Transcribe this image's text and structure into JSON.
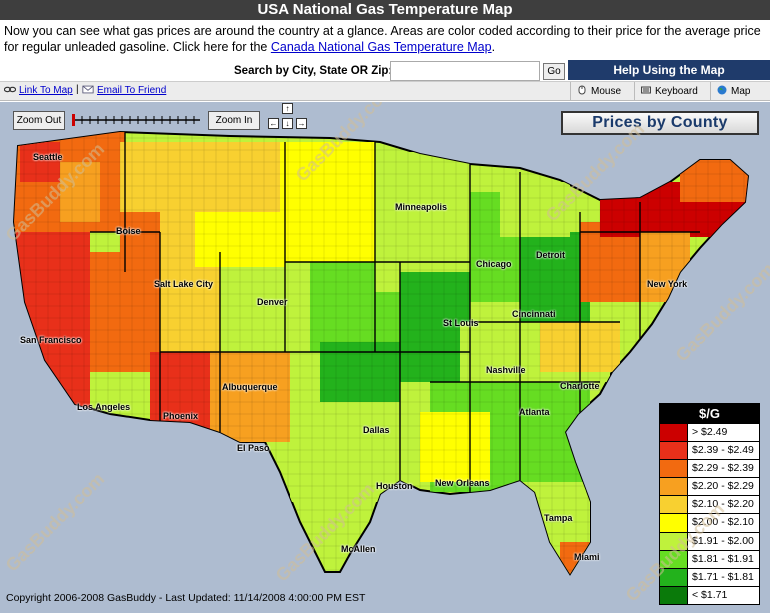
{
  "header": {
    "title": "USA National Gas Temperature Map"
  },
  "intro": {
    "text": "Now you can see what gas prices are around the country at a glance. Areas are color coded according to their price for the average price for regular unleaded gasoline. Click here for the",
    "link": "Canada National Gas Temperature Map",
    "suffix": "."
  },
  "search": {
    "label": "Search by City, State OR Zip:",
    "value": "",
    "go_label": "Go"
  },
  "toolbar": {
    "link_to_map": "Link To Map",
    "separator": "|",
    "email_to_friend": "Email To Friend"
  },
  "help": {
    "title": "Help Using the Map",
    "tabs": [
      {
        "label": "Mouse",
        "icon": "mouse-icon"
      },
      {
        "label": "Keyboard",
        "icon": "keyboard-icon"
      },
      {
        "label": "Map",
        "icon": "globe-icon"
      }
    ]
  },
  "map_controls": {
    "zoom_out": "Zoom Out",
    "zoom_in": "Zoom In",
    "pan_up": "↑",
    "pan_left": "←",
    "pan_down": "↓",
    "pan_right": "→"
  },
  "map_mode": {
    "label": "Prices by County"
  },
  "legend": {
    "title": "$/G",
    "rows": [
      {
        "label": "> $2.49",
        "color": "#cc0000"
      },
      {
        "label": "$2.39 - $2.49",
        "color": "#e8301a"
      },
      {
        "label": "$2.29 - $2.39",
        "color": "#f26a10"
      },
      {
        "label": "$2.20 - $2.29",
        "color": "#f7a020"
      },
      {
        "label": "$2.10 - $2.20",
        "color": "#f8d030"
      },
      {
        "label": "$2.00 - $2.10",
        "color": "#ffff00"
      },
      {
        "label": "$1.91 - $2.00",
        "color": "#bff23c"
      },
      {
        "label": "$1.81 - $1.91",
        "color": "#66dd22"
      },
      {
        "label": "$1.71 - $1.81",
        "color": "#23b21c"
      },
      {
        "label": "< $1.71",
        "color": "#0a7a0a"
      }
    ]
  },
  "cities": [
    "Seattle",
    "Boise",
    "Salt Lake City",
    "Denver",
    "San Francisco",
    "Los Angeles",
    "Phoenix",
    "Albuquerque",
    "El Paso",
    "Minneapolis",
    "Chicago",
    "Detroit",
    "St Louis",
    "Cincinnati",
    "Nashville",
    "Dallas",
    "Houston",
    "New Orleans",
    "Atlanta",
    "Charlotte",
    "New York",
    "Tampa",
    "Miami",
    "McAllen"
  ],
  "watermark_text": "GasBuddy.com",
  "footer": {
    "text": "Copyright 2006-2008 GasBuddy - Last Updated: 11/14/2008 4:00:00 PM EST"
  }
}
